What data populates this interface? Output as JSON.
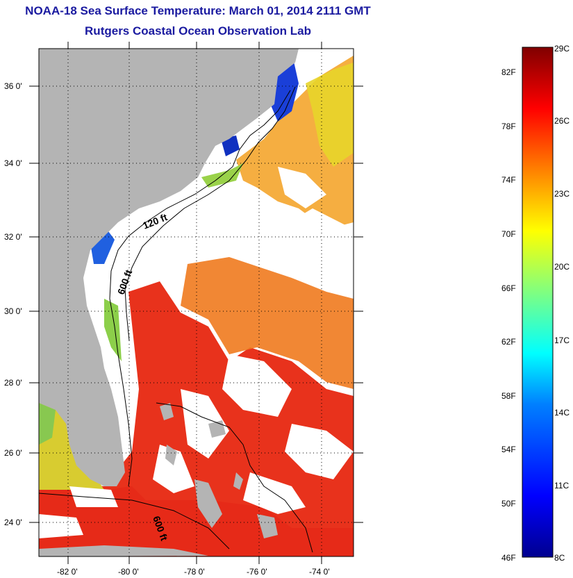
{
  "header": {
    "title": "NOAA-18 Sea Surface Temperature:  March 01, 2014 2111 GMT",
    "subtitle": "Rutgers Coastal Ocean Observation Lab"
  },
  "map": {
    "lat_labels": [
      "36 0'",
      "34 0'",
      "32 0'",
      "30 0'",
      "28 0'",
      "26 0'",
      "24 0'"
    ],
    "lon_labels": [
      "-82 0'",
      "-80 0'",
      "-78 0'",
      "-76 0'",
      "-74 0'"
    ],
    "contour_labels": [
      "120 ft",
      "600 ft",
      "600 ft"
    ],
    "colors": {
      "land": "#b4b4b4",
      "cloud": "#ffffff",
      "warm_sst": "#e8321c"
    }
  },
  "colorbar": {
    "fahrenheit_labels": [
      "82F",
      "78F",
      "74F",
      "70F",
      "66F",
      "62F",
      "58F",
      "54F",
      "50F",
      "46F"
    ],
    "celsius_labels": [
      "29C",
      "26C",
      "23C",
      "20C",
      "17C",
      "14C",
      "11C",
      "8C"
    ],
    "range_c": [
      8,
      29
    ],
    "colors": [
      "#00008f",
      "#0000ff",
      "#0080ff",
      "#00ffff",
      "#80ff80",
      "#ffff00",
      "#ff8000",
      "#ff0000",
      "#800000"
    ]
  }
}
